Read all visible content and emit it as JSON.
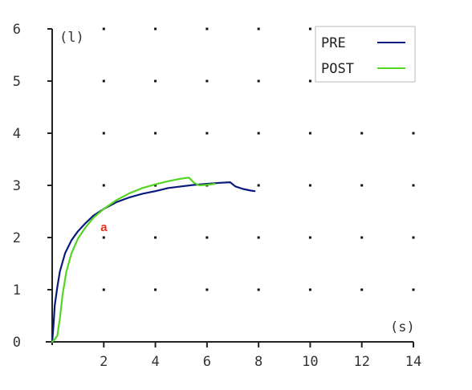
{
  "chart_data": {
    "type": "line",
    "title": "",
    "xlabel": "(s)",
    "ylabel": "(l)",
    "xlim": [
      0,
      14
    ],
    "ylim": [
      0,
      6
    ],
    "x_ticks": [
      "2",
      "4",
      "6",
      "8",
      "10",
      "12",
      "14"
    ],
    "y_ticks": [
      "0",
      "1",
      "2",
      "3",
      "4",
      "5",
      "6"
    ],
    "grid": "dotted",
    "legend_position": "top-right",
    "series": [
      {
        "name": "PRE",
        "color": "#0a1a7a",
        "x": [
          0,
          0.05,
          0.1,
          0.2,
          0.3,
          0.5,
          0.75,
          1.0,
          1.3,
          1.6,
          2.0,
          2.5,
          3.0,
          3.5,
          4.0,
          4.5,
          5.0,
          5.5,
          6.0,
          6.5,
          6.9,
          7.1,
          7.4,
          7.7,
          7.85
        ],
        "y": [
          0,
          0.3,
          0.7,
          1.05,
          1.35,
          1.7,
          1.95,
          2.12,
          2.28,
          2.42,
          2.55,
          2.68,
          2.77,
          2.84,
          2.89,
          2.95,
          2.98,
          3.01,
          3.03,
          3.05,
          3.06,
          2.98,
          2.93,
          2.9,
          2.89
        ]
      },
      {
        "name": "POST",
        "color": "#56d424",
        "x": [
          0,
          0.1,
          0.2,
          0.3,
          0.4,
          0.55,
          0.75,
          1.0,
          1.3,
          1.6,
          2.0,
          2.5,
          3.0,
          3.5,
          4.0,
          4.5,
          5.0,
          5.3,
          5.5,
          5.7,
          6.0,
          6.3
        ],
        "y": [
          0,
          0.05,
          0.12,
          0.45,
          0.9,
          1.35,
          1.7,
          1.98,
          2.2,
          2.38,
          2.55,
          2.72,
          2.85,
          2.95,
          3.02,
          3.08,
          3.13,
          3.15,
          3.05,
          3.0,
          3.01,
          3.03
        ]
      }
    ],
    "annotations": [
      {
        "text": "a",
        "x": 2.0,
        "y": 2.2,
        "color": "#e8321a"
      }
    ]
  }
}
